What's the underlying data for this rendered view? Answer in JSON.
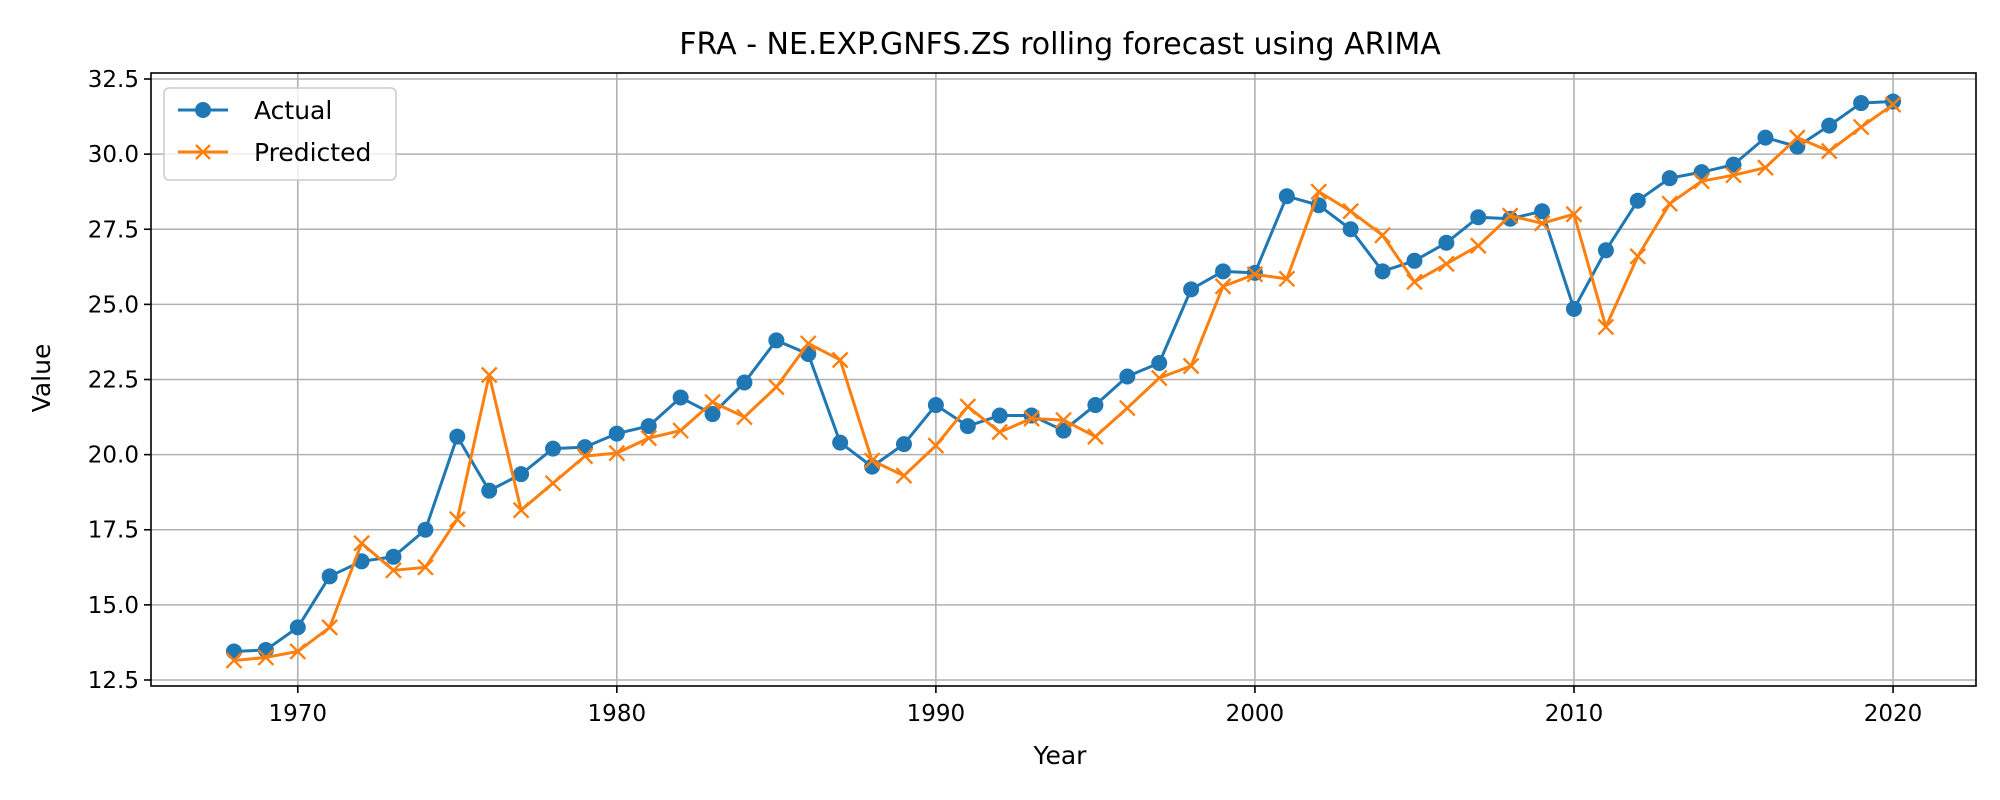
{
  "chart_data": {
    "type": "line",
    "title": "FRA - NE.EXP.GNFS.ZS rolling forecast using ARIMA",
    "xlabel": "Year",
    "ylabel": "Value",
    "xlim": [
      1965.4,
      2022.6
    ],
    "ylim": [
      12.3,
      32.7
    ],
    "xticks": [
      1970,
      1980,
      1990,
      2000,
      2010,
      2020
    ],
    "yticks": [
      12.5,
      15.0,
      17.5,
      20.0,
      22.5,
      25.0,
      27.5,
      30.0,
      32.5
    ],
    "grid": true,
    "legend_position": "upper-left",
    "x": [
      1968,
      1969,
      1970,
      1971,
      1972,
      1973,
      1974,
      1975,
      1976,
      1977,
      1978,
      1979,
      1980,
      1981,
      1982,
      1983,
      1984,
      1985,
      1986,
      1987,
      1988,
      1989,
      1990,
      1991,
      1992,
      1993,
      1994,
      1995,
      1996,
      1997,
      1998,
      1999,
      2000,
      2001,
      2002,
      2003,
      2004,
      2005,
      2006,
      2007,
      2008,
      2009,
      2010,
      2011,
      2012,
      2013,
      2014,
      2015,
      2016,
      2017,
      2018,
      2019,
      2020
    ],
    "series": [
      {
        "name": "Actual",
        "color": "#1f77b4",
        "marker": "circle",
        "values": [
          13.45,
          13.5,
          14.25,
          15.95,
          16.45,
          16.6,
          17.5,
          20.6,
          18.8,
          19.35,
          20.2,
          20.25,
          20.7,
          20.95,
          21.9,
          21.35,
          22.4,
          23.8,
          23.35,
          20.4,
          19.6,
          20.35,
          21.65,
          20.95,
          21.3,
          21.3,
          20.8,
          21.65,
          22.6,
          23.05,
          25.5,
          26.1,
          26.05,
          28.6,
          28.3,
          27.5,
          26.1,
          26.45,
          27.05,
          27.9,
          27.85,
          28.1,
          24.85,
          26.8,
          28.45,
          29.2,
          29.4,
          29.65,
          30.55,
          30.25,
          30.95,
          31.7,
          31.75
        ]
      },
      {
        "name": "Predicted",
        "color": "#ff7f0e",
        "marker": "x",
        "values": [
          13.15,
          13.25,
          13.45,
          14.25,
          17.05,
          16.15,
          16.25,
          17.85,
          22.65,
          18.15,
          19.05,
          19.95,
          20.05,
          20.55,
          20.8,
          21.75,
          21.25,
          22.25,
          23.7,
          23.15,
          19.8,
          19.3,
          20.3,
          21.6,
          20.75,
          21.2,
          21.15,
          20.6,
          21.55,
          22.55,
          22.95,
          25.6,
          26.0,
          25.85,
          28.75,
          28.1,
          27.3,
          25.75,
          26.35,
          26.95,
          27.95,
          27.7,
          28.0,
          24.25,
          26.6,
          28.35,
          29.1,
          29.3,
          29.55,
          30.55,
          30.1,
          30.9,
          31.65
        ]
      }
    ]
  }
}
